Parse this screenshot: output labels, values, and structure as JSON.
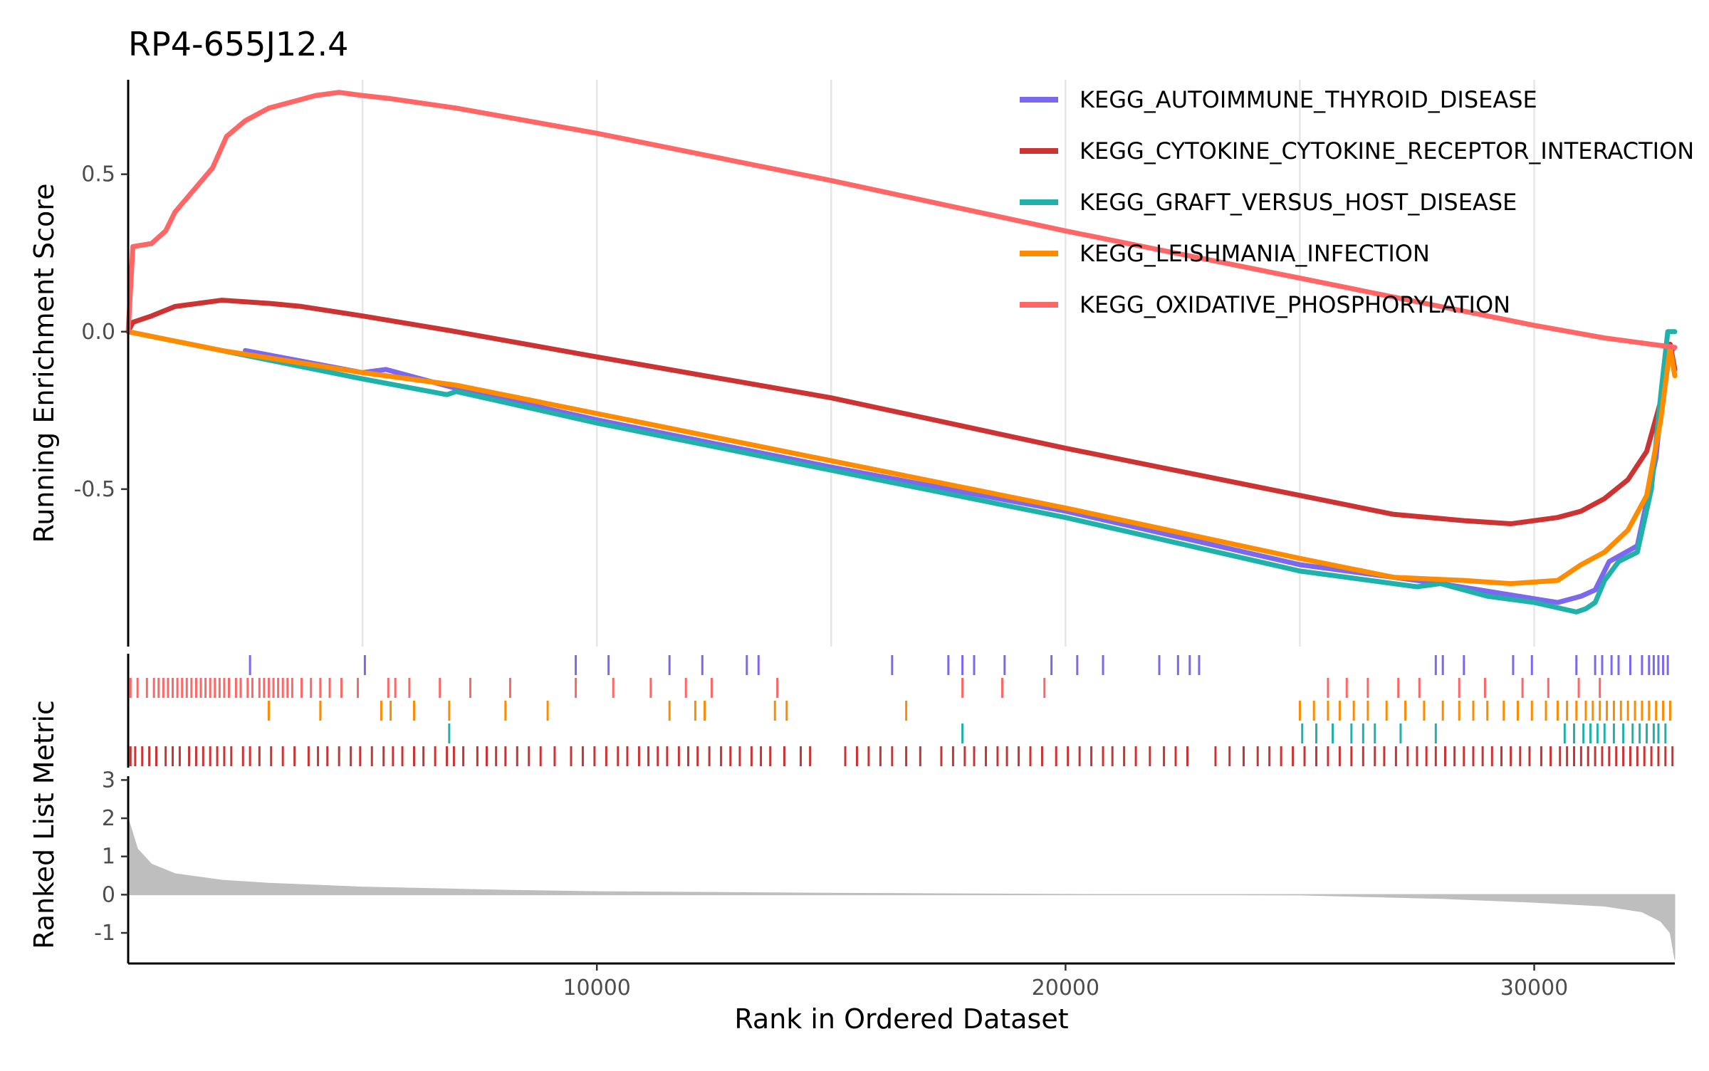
{
  "chart_data": {
    "type": "line",
    "title": "RP4-655J12.4",
    "xlabel": "Rank in Ordered Dataset",
    "ylabel_top": "Running Enrichment Score",
    "ylabel_bottom": "Ranked List Metric",
    "xlim": [
      0,
      33000
    ],
    "x_ticks": [
      10000,
      20000,
      30000
    ],
    "x_tick_labels": [
      "10000",
      "20000",
      "30000"
    ],
    "es_ylim": [
      -1.0,
      0.8
    ],
    "es_y_ticks": [
      0.5,
      0.0,
      -0.5
    ],
    "es_y_tick_labels": [
      "0.5",
      "0.0",
      "-0.5"
    ],
    "metric_ylim": [
      -1.8,
      3.1
    ],
    "metric_y_ticks": [
      3,
      2,
      1,
      0,
      -1
    ],
    "metric_y_tick_labels": [
      "3",
      "2",
      "1",
      "0",
      "-1"
    ],
    "grid": true,
    "legend_position": "top-right",
    "series": [
      {
        "name": "KEGG_AUTOIMMUNE_THYROID_DISEASE",
        "color": "#7B68EE",
        "points": [
          [
            2500,
            -0.06
          ],
          [
            5000,
            -0.13
          ],
          [
            5500,
            -0.12
          ],
          [
            7000,
            -0.18
          ],
          [
            10000,
            -0.28
          ],
          [
            15000,
            -0.43
          ],
          [
            20000,
            -0.57
          ],
          [
            25000,
            -0.74
          ],
          [
            28000,
            -0.8
          ],
          [
            30500,
            -0.86
          ],
          [
            31000,
            -0.84
          ],
          [
            31300,
            -0.82
          ],
          [
            31600,
            -0.73
          ],
          [
            32200,
            -0.68
          ],
          [
            32600,
            -0.4
          ],
          [
            32800,
            -0.08
          ],
          [
            33000,
            -0.05
          ]
        ],
        "hits": [
          2600,
          5050,
          9550,
          10250,
          11550,
          12250,
          13200,
          13450,
          16300,
          17500,
          17800,
          18050,
          18700,
          19700,
          20250,
          20800,
          22000,
          22400,
          22650,
          22850,
          27900,
          28050,
          28500,
          29550,
          29950,
          30900,
          31300,
          31450,
          31650,
          31800,
          32050,
          32300,
          32450,
          32550,
          32650,
          32750,
          32850
        ]
      },
      {
        "name": "KEGG_CYTOKINE_CYTOKINE_RECEPTOR_INTERACTION",
        "color": "#CC3333",
        "points": [
          [
            0,
            0.0
          ],
          [
            100,
            0.03
          ],
          [
            500,
            0.05
          ],
          [
            1000,
            0.08
          ],
          [
            2000,
            0.1
          ],
          [
            3000,
            0.09
          ],
          [
            3700,
            0.08
          ],
          [
            5000,
            0.05
          ],
          [
            7000,
            0.0
          ],
          [
            10000,
            -0.08
          ],
          [
            15000,
            -0.21
          ],
          [
            20000,
            -0.37
          ],
          [
            25000,
            -0.52
          ],
          [
            27000,
            -0.58
          ],
          [
            28500,
            -0.6
          ],
          [
            29500,
            -0.61
          ],
          [
            30500,
            -0.59
          ],
          [
            31000,
            -0.57
          ],
          [
            31500,
            -0.53
          ],
          [
            32000,
            -0.47
          ],
          [
            32400,
            -0.38
          ],
          [
            32700,
            -0.22
          ],
          [
            32900,
            -0.04
          ],
          [
            33000,
            -0.12
          ]
        ],
        "hits": [
          50,
          150,
          300,
          450,
          600,
          800,
          950,
          1100,
          1300,
          1450,
          1600,
          1750,
          1900,
          2050,
          2200,
          2450,
          2600,
          2800,
          3050,
          3300,
          3550,
          3850,
          4050,
          4250,
          4500,
          4750,
          4950,
          5200,
          5450,
          5650,
          5850,
          6100,
          6300,
          6550,
          6800,
          6950,
          7150,
          7450,
          7650,
          7850,
          8050,
          8300,
          8550,
          8800,
          9100,
          9450,
          9700,
          9950,
          10200,
          10450,
          10650,
          10900,
          11100,
          11300,
          11500,
          11750,
          11950,
          12150,
          12400,
          12650,
          12850,
          13050,
          13300,
          13500,
          13700,
          14000,
          14350,
          14550,
          15300,
          15550,
          15800,
          16050,
          16300,
          16600,
          16900,
          17350,
          17600,
          17850,
          18050,
          18300,
          18550,
          18750,
          19000,
          19250,
          19500,
          19800,
          20050,
          20300,
          20550,
          20800,
          21000,
          21250,
          21500,
          21800,
          22100,
          22350,
          22600,
          23200,
          23500,
          23800,
          24100,
          24350,
          24600,
          24850,
          25100,
          25350,
          25600,
          25850,
          26100,
          26350,
          26600,
          26800,
          27050,
          27300,
          27500,
          27700,
          27900,
          28100,
          28300,
          28500,
          28700,
          28900,
          29100,
          29300,
          29500,
          29700,
          29900,
          30150,
          30350,
          30550,
          30700,
          30850,
          31000,
          31150,
          31300,
          31450,
          31600,
          31750,
          31900,
          32050,
          32200,
          32350,
          32500,
          32650,
          32800,
          32950
        ]
      },
      {
        "name": "KEGG_GRAFT_VERSUS_HOST_DISEASE",
        "color": "#20B2AA",
        "points": [
          [
            0,
            0.0
          ],
          [
            5000,
            -0.15
          ],
          [
            6800,
            -0.2
          ],
          [
            7000,
            -0.19
          ],
          [
            10000,
            -0.29
          ],
          [
            15000,
            -0.44
          ],
          [
            20000,
            -0.59
          ],
          [
            25000,
            -0.76
          ],
          [
            27500,
            -0.81
          ],
          [
            28000,
            -0.8
          ],
          [
            29000,
            -0.84
          ],
          [
            30000,
            -0.86
          ],
          [
            30900,
            -0.89
          ],
          [
            31100,
            -0.88
          ],
          [
            31300,
            -0.86
          ],
          [
            31500,
            -0.79
          ],
          [
            31800,
            -0.73
          ],
          [
            32200,
            -0.7
          ],
          [
            32500,
            -0.5
          ],
          [
            32700,
            -0.2
          ],
          [
            32850,
            0.0
          ],
          [
            33000,
            0.0
          ]
        ],
        "hits": [
          6850,
          17800,
          25050,
          25350,
          25700,
          26100,
          26350,
          26600,
          27150,
          27900,
          30650,
          30850,
          31050,
          31200,
          31350,
          31500,
          31700,
          31900,
          32100,
          32250,
          32400,
          32550,
          32650,
          32800
        ]
      },
      {
        "name": "KEGG_LEISHMANIA_INFECTION",
        "color": "#FF8C00",
        "points": [
          [
            0,
            0.0
          ],
          [
            2000,
            -0.06
          ],
          [
            5000,
            -0.13
          ],
          [
            7000,
            -0.17
          ],
          [
            10000,
            -0.26
          ],
          [
            15000,
            -0.41
          ],
          [
            20000,
            -0.56
          ],
          [
            25000,
            -0.72
          ],
          [
            27000,
            -0.78
          ],
          [
            28500,
            -0.79
          ],
          [
            29500,
            -0.8
          ],
          [
            30500,
            -0.79
          ],
          [
            31000,
            -0.74
          ],
          [
            31500,
            -0.7
          ],
          [
            32000,
            -0.63
          ],
          [
            32400,
            -0.52
          ],
          [
            32700,
            -0.28
          ],
          [
            32900,
            -0.05
          ],
          [
            33000,
            -0.14
          ]
        ],
        "hits": [
          3000,
          4100,
          5400,
          5600,
          6100,
          6850,
          8050,
          8950,
          11550,
          12100,
          12300,
          13800,
          14050,
          16600,
          25000,
          25300,
          25600,
          25850,
          26150,
          26450,
          26850,
          27250,
          27650,
          28050,
          28400,
          28700,
          29000,
          29350,
          29650,
          29950,
          30250,
          30500,
          30700,
          30900,
          31100,
          31250,
          31400,
          31550,
          31700,
          31850,
          32000,
          32150,
          32300,
          32450,
          32600,
          32750,
          32900
        ]
      },
      {
        "name": "KEGG_OXIDATIVE_PHOSPHORYLATION",
        "color": "#FF6666",
        "points": [
          [
            0,
            0.0
          ],
          [
            100,
            0.27
          ],
          [
            500,
            0.28
          ],
          [
            800,
            0.32
          ],
          [
            1000,
            0.38
          ],
          [
            1400,
            0.45
          ],
          [
            1800,
            0.52
          ],
          [
            2100,
            0.62
          ],
          [
            2500,
            0.67
          ],
          [
            3000,
            0.71
          ],
          [
            3500,
            0.73
          ],
          [
            4000,
            0.75
          ],
          [
            4500,
            0.76
          ],
          [
            5000,
            0.75
          ],
          [
            5600,
            0.74
          ],
          [
            7000,
            0.71
          ],
          [
            10000,
            0.63
          ],
          [
            15000,
            0.48
          ],
          [
            20000,
            0.32
          ],
          [
            25000,
            0.17
          ],
          [
            30000,
            0.02
          ],
          [
            31500,
            -0.02
          ],
          [
            33000,
            -0.05
          ]
        ],
        "hits": [
          50,
          200,
          400,
          550,
          650,
          750,
          850,
          950,
          1050,
          1150,
          1250,
          1350,
          1450,
          1550,
          1650,
          1750,
          1850,
          1950,
          2050,
          2150,
          2300,
          2400,
          2550,
          2650,
          2800,
          2900,
          3000,
          3100,
          3200,
          3300,
          3400,
          3500,
          3700,
          3900,
          4100,
          4300,
          4550,
          4900,
          5550,
          5700,
          6000,
          6650,
          7300,
          8150,
          9550,
          10350,
          11150,
          11900,
          12450,
          13850,
          17800,
          18650,
          19550,
          25600,
          26000,
          26450,
          27100,
          27550,
          28400,
          28950,
          29750,
          30300,
          30950,
          31400
        ]
      }
    ],
    "ranked_metric": {
      "x": [
        0,
        200,
        500,
        1000,
        2000,
        3000,
        5000,
        8000,
        10000,
        15000,
        20000,
        22000,
        23000,
        25000,
        28000,
        30000,
        31500,
        32300,
        32700,
        32900,
        33000
      ],
      "values": [
        2.0,
        1.2,
        0.8,
        0.55,
        0.38,
        0.3,
        0.2,
        0.12,
        0.08,
        0.04,
        0.01,
        0.0,
        0.0,
        -0.01,
        -0.1,
        -0.2,
        -0.3,
        -0.45,
        -0.7,
        -1.0,
        -1.7
      ]
    }
  }
}
